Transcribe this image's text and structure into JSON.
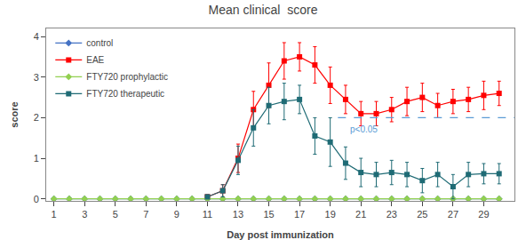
{
  "chart_data": {
    "type": "line",
    "title": "Mean clinical  score",
    "x_label": "Day post immunization",
    "y_label": "score",
    "xlim": [
      0.5,
      31.0
    ],
    "ylim": [
      -0.05,
      4.2
    ],
    "xticks": [
      1,
      3,
      5,
      7,
      9,
      11,
      13,
      15,
      17,
      19,
      21,
      23,
      25,
      27,
      29
    ],
    "yticks": [
      0,
      1,
      2,
      3,
      4
    ],
    "grid": false,
    "legend": "upper left",
    "series": [
      {
        "name": "control",
        "color": "#4472C4",
        "marker": "diamond",
        "x": [
          1,
          2,
          3,
          4,
          5,
          6,
          7,
          8,
          9,
          10,
          11,
          12,
          13,
          14,
          15,
          16,
          17,
          18,
          19,
          20,
          21,
          22,
          23,
          24,
          25,
          26,
          27,
          28,
          29,
          30
        ],
        "values": [
          0,
          0,
          0,
          0,
          0,
          0,
          0,
          0,
          0,
          0,
          0,
          0,
          0,
          0,
          0,
          0,
          0,
          0,
          0,
          0,
          0,
          0,
          0,
          0,
          0,
          0,
          0,
          0,
          0,
          0
        ]
      },
      {
        "name": "EAE",
        "color": "#FF0000",
        "marker": "square",
        "x": [
          11,
          12,
          13,
          14,
          15,
          16,
          17,
          18,
          19,
          20,
          21,
          22,
          23,
          24,
          25,
          26,
          27,
          28,
          29,
          30
        ],
        "values": [
          0.05,
          0.2,
          1.0,
          2.2,
          2.8,
          3.4,
          3.5,
          3.3,
          2.8,
          2.45,
          2.1,
          2.1,
          2.2,
          2.4,
          2.5,
          2.3,
          2.4,
          2.45,
          2.55,
          2.6
        ],
        "errors": [
          0.05,
          0.15,
          0.35,
          0.45,
          0.55,
          0.45,
          0.35,
          0.45,
          0.45,
          0.35,
          0.3,
          0.3,
          0.3,
          0.35,
          0.35,
          0.3,
          0.3,
          0.3,
          0.35,
          0.3
        ]
      },
      {
        "name": "FTY720 prophylactic",
        "color": "#92D050",
        "marker": "diamond",
        "x": [
          1,
          2,
          3,
          4,
          5,
          6,
          7,
          8,
          9,
          10,
          11,
          12,
          13,
          14,
          15,
          16,
          17,
          18,
          19,
          20,
          21,
          22,
          23,
          24,
          25,
          26,
          27,
          28,
          29,
          30
        ],
        "values": [
          0,
          0,
          0,
          0,
          0,
          0,
          0,
          0,
          0,
          0,
          0,
          0,
          0,
          0,
          0,
          0,
          0,
          0,
          0,
          0,
          0,
          0,
          0,
          0,
          0,
          0,
          0,
          0,
          0,
          0
        ]
      },
      {
        "name": "FTY720 therapeutic",
        "color": "#1F6B75",
        "marker": "square",
        "x": [
          11,
          12,
          13,
          14,
          15,
          16,
          17,
          18,
          19,
          20,
          21,
          22,
          23,
          24,
          25,
          26,
          27,
          28,
          29,
          30
        ],
        "values": [
          0.05,
          0.2,
          0.95,
          1.75,
          2.3,
          2.4,
          2.45,
          1.55,
          1.4,
          0.88,
          0.65,
          0.6,
          0.65,
          0.6,
          0.45,
          0.6,
          0.3,
          0.6,
          0.62,
          0.62
        ],
        "errors": [
          0.05,
          0.15,
          0.35,
          0.45,
          0.45,
          0.45,
          0.35,
          0.45,
          0.6,
          0.4,
          0.35,
          0.3,
          0.3,
          0.3,
          0.3,
          0.3,
          0.3,
          0.3,
          0.25,
          0.25
        ]
      }
    ],
    "reference_lines": [
      {
        "y": 2.0,
        "x_start": 19.5,
        "color": "#5B9BD5",
        "line_style": "dashed"
      }
    ],
    "annotations": [
      {
        "text": "p<0.05",
        "x": 20.2,
        "y": 1.88,
        "color": "#5B9BD5"
      }
    ]
  }
}
